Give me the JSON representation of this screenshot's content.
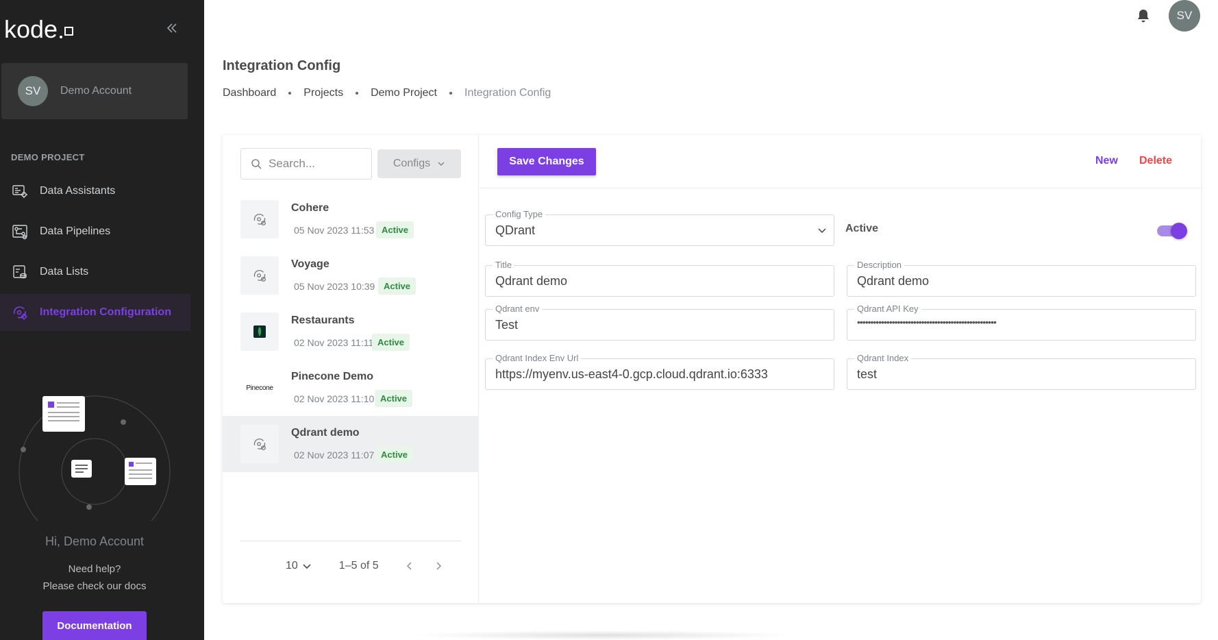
{
  "brand": {
    "logo_text": "kode"
  },
  "account": {
    "initials": "SV",
    "name": "Demo Account"
  },
  "sidebar": {
    "section_title": "DEMO PROJECT",
    "items": [
      {
        "label": "Data Assistants",
        "icon": "data-assistants-icon",
        "active": false
      },
      {
        "label": "Data Pipelines",
        "icon": "data-pipelines-icon",
        "active": false
      },
      {
        "label": "Data Lists",
        "icon": "data-lists-icon",
        "active": false
      },
      {
        "label": "Integration Configuration",
        "icon": "integration-config-icon",
        "active": true
      }
    ],
    "greeting": "Hi, Demo Account",
    "help_line1": "Need help?",
    "help_line2": "Please check our docs",
    "docs_button": "Documentation"
  },
  "topbar": {
    "avatar_initials": "SV"
  },
  "header": {
    "title": "Integration Config",
    "breadcrumb": [
      "Dashboard",
      "Projects",
      "Demo Project",
      "Integration Config"
    ]
  },
  "list": {
    "search_placeholder": "Search...",
    "filter_label": "Configs",
    "items": [
      {
        "name": "Cohere",
        "date": "05 Nov 2023 11:53 PM",
        "status": "Active",
        "thumb": "integration-icon"
      },
      {
        "name": "Voyage",
        "date": "05 Nov 2023 10:39 PM",
        "status": "Active",
        "thumb": "integration-icon"
      },
      {
        "name": "Restaurants",
        "date": "02 Nov 2023 11:11 PM",
        "status": "Active",
        "thumb": "mongodb-leaf-icon"
      },
      {
        "name": "Pinecone Demo",
        "date": "02 Nov 2023 11:10 PM",
        "status": "Active",
        "thumb": "pinecone-logo",
        "thumb_text": "Pinecone"
      },
      {
        "name": "Qdrant demo",
        "date": "02 Nov 2023 11:07 PM",
        "status": "Active",
        "thumb": "integration-icon",
        "selected": true
      }
    ],
    "pager": {
      "page_size": "10",
      "range": "1–5 of 5"
    }
  },
  "detail": {
    "save_label": "Save Changes",
    "new_label": "New",
    "delete_label": "Delete",
    "config_type": {
      "label": "Config Type",
      "value": "QDrant"
    },
    "active": {
      "label": "Active",
      "value": true
    },
    "title": {
      "label": "Title",
      "value": "Qdrant demo"
    },
    "description": {
      "label": "Description",
      "value": "Qdrant demo"
    },
    "env": {
      "label": "Qdrant env",
      "value": "Test"
    },
    "api_key": {
      "label": "Qdrant API Key",
      "value": "••••••••••••••••••••••••••••••••••••••••••••••••••••"
    },
    "index_url": {
      "label": "Qdrant Index Env Url",
      "value": "https://myenv.us-east4-0.gcp.cloud.qdrant.io:6333"
    },
    "index": {
      "label": "Qdrant Index",
      "value": "test"
    }
  },
  "colors": {
    "accent": "#7b3fe4",
    "danger": "#ef4545",
    "sidebar_bg": "#212121",
    "badge_bg": "#e7f6e9",
    "badge_text": "#2e8b3e"
  }
}
